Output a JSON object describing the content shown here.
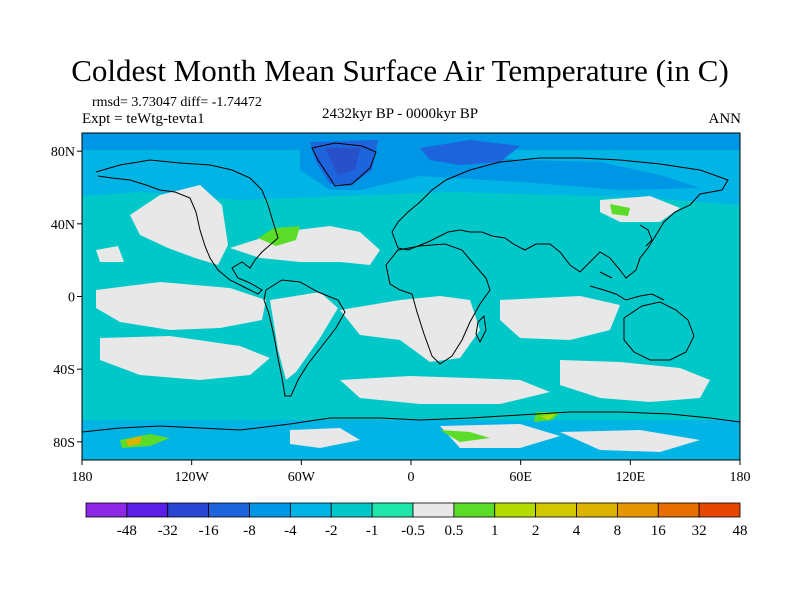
{
  "title": "Coldest Month Mean Surface Air Temperature (in C)",
  "stats": {
    "rmsd_label": "rmsd= 3.73047",
    "diff_label": "diff= -1.74472"
  },
  "experiment": "Expt = teWtg-tevta1",
  "period": "2432kyr BP - 0000kyr BP",
  "season": "ANN",
  "map": {
    "projection": "cylindrical-equidistant",
    "lon_range": [
      -180,
      180
    ],
    "lat_range": [
      -90,
      90
    ],
    "lat_ticks": [
      {
        "value": 80,
        "label": "80N"
      },
      {
        "value": 40,
        "label": "40N"
      },
      {
        "value": 0,
        "label": "0"
      },
      {
        "value": -40,
        "label": "40S"
      },
      {
        "value": -80,
        "label": "80S"
      }
    ],
    "lon_ticks": [
      {
        "value": -180,
        "label": "180"
      },
      {
        "value": -120,
        "label": "120W"
      },
      {
        "value": -60,
        "label": "60W"
      },
      {
        "value": 0,
        "label": "0"
      },
      {
        "value": 60,
        "label": "60E"
      },
      {
        "value": 120,
        "label": "120E"
      },
      {
        "value": 180,
        "label": "180"
      }
    ],
    "colors": {
      "ocean_base": "#00c8c8",
      "neutral": "#e8e8e8",
      "light_blue": "#00b4e6",
      "mid_blue": "#0096e6",
      "deep_blue": "#1e64dc",
      "darker_blue": "#2850c8",
      "green": "#5adc28",
      "yellow_green": "#b4dc00",
      "gold": "#dcb400"
    }
  },
  "colorbar": {
    "colors": [
      "#8c28e6",
      "#5a1ee6",
      "#2846d2",
      "#1e64dc",
      "#0096e6",
      "#00b4e6",
      "#00c8c8",
      "#1ee6aa",
      "#e8e8e8",
      "#5adc28",
      "#b4dc00",
      "#d2c800",
      "#dcb400",
      "#e69600",
      "#e66e00",
      "#e64600"
    ],
    "labels": [
      "-48",
      "-32",
      "-16",
      "-8",
      "-4",
      "-2",
      "-1",
      "-0.5",
      "0.5",
      "1",
      "2",
      "4",
      "8",
      "16",
      "32",
      "48"
    ]
  }
}
